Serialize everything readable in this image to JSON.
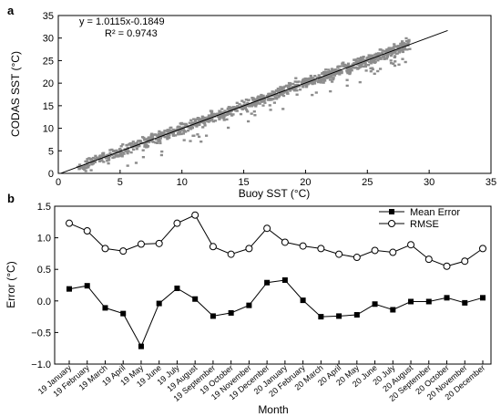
{
  "chart_data": [
    {
      "panel": "a",
      "type": "scatter",
      "xlabel": "Buoy SST (°C)",
      "ylabel": "CODAS SST (°C)",
      "xlim": [
        0,
        35
      ],
      "ylim": [
        0,
        35
      ],
      "xticks": [
        0,
        5,
        10,
        15,
        20,
        25,
        30,
        35
      ],
      "yticks": [
        0,
        5,
        10,
        15,
        20,
        25,
        30,
        35
      ],
      "grid": false,
      "equation_text": "y = 1.0115x-0.1849",
      "r2_text": "R² = 0.9743",
      "fit": {
        "slope": 1.0115,
        "intercept": -0.1849,
        "x_range": [
          0.2,
          31.5
        ]
      },
      "scatter_x_range": [
        1.5,
        28.5
      ],
      "points_color": "#8c8c8c"
    },
    {
      "panel": "b",
      "type": "line",
      "xlabel": "Month",
      "ylabel": "Error (°C)",
      "ylim": [
        -1.0,
        1.5
      ],
      "yticks": [
        -1.0,
        -0.5,
        0.0,
        0.5,
        1.0,
        1.5
      ],
      "ytick_labels": [
        "−1.0",
        "−0.5",
        "0.0",
        "0.5",
        "1.0",
        "1.5"
      ],
      "grid": false,
      "legend_position": "top-right",
      "categories": [
        "19 January",
        "19 February",
        "19 March",
        "19 April",
        "19 May",
        "19 June",
        "19 July",
        "19 August",
        "19 September",
        "19 October",
        "19 November",
        "19 December",
        "20 January",
        "20 February",
        "20 March",
        "20 April",
        "20 May",
        "20 June",
        "20 July",
        "20 August",
        "20 September",
        "20 October",
        "20 November",
        "20 December"
      ],
      "series": [
        {
          "name": "Mean Error",
          "marker": "filled-square",
          "values": [
            0.19,
            0.24,
            -0.11,
            -0.2,
            -0.72,
            -0.04,
            0.2,
            0.03,
            -0.24,
            -0.19,
            -0.07,
            0.29,
            0.33,
            0.01,
            -0.25,
            -0.24,
            -0.22,
            -0.05,
            -0.14,
            -0.01,
            -0.01,
            0.05,
            -0.03,
            0.05
          ]
        },
        {
          "name": "RMSE",
          "marker": "open-circle",
          "values": [
            1.23,
            1.11,
            0.83,
            0.79,
            0.9,
            0.91,
            1.23,
            1.36,
            0.86,
            0.74,
            0.83,
            1.15,
            0.93,
            0.87,
            0.83,
            0.74,
            0.69,
            0.8,
            0.77,
            0.89,
            0.66,
            0.55,
            0.63,
            0.83
          ]
        }
      ]
    }
  ]
}
